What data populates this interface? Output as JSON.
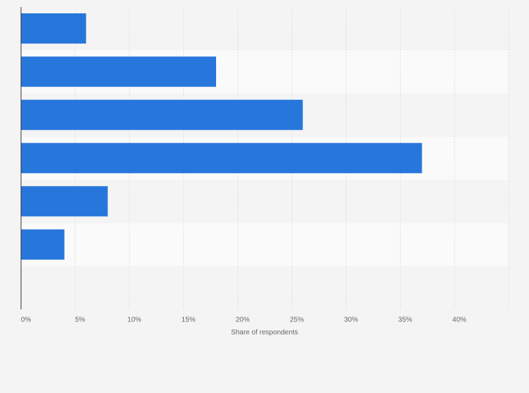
{
  "chart_data": {
    "type": "hbar",
    "x_label": "Share of respondents",
    "categories": [
      null,
      null,
      null,
      null,
      null,
      null,
      null
    ],
    "values": [
      6,
      18,
      26,
      37,
      8,
      4,
      null
    ],
    "color": "#2776dc",
    "xlim": [
      0,
      45
    ],
    "xticks": [
      {
        "value": 0,
        "label": "0%"
      },
      {
        "value": 5,
        "label": "5%"
      },
      {
        "value": 10,
        "label": "10%"
      },
      {
        "value": 15,
        "label": "15%"
      },
      {
        "value": 20,
        "label": "20%"
      },
      {
        "value": 25,
        "label": "25%"
      },
      {
        "value": 30,
        "label": "30%"
      },
      {
        "value": 35,
        "label": "35%"
      },
      {
        "value": 40,
        "label": "40%"
      }
    ],
    "grid": true
  }
}
